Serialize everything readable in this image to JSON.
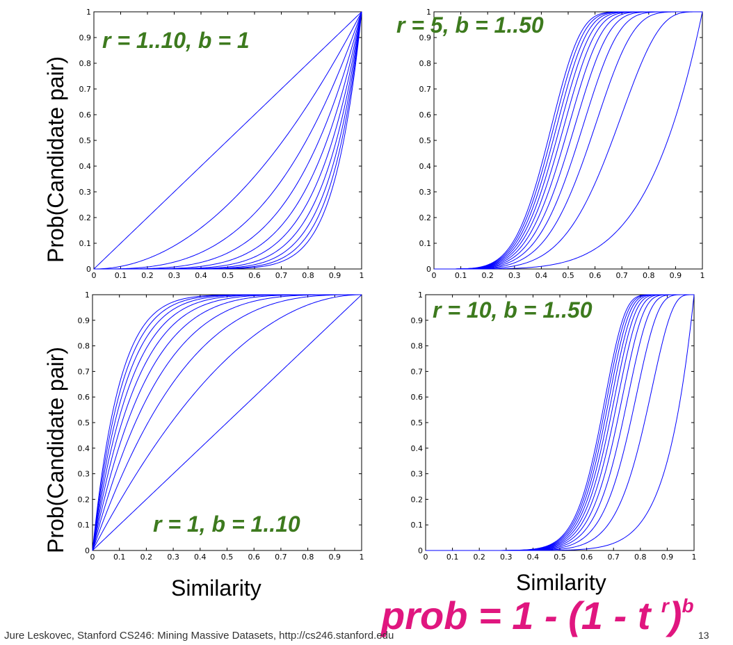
{
  "slide": {
    "footer": "Jure Leskovec, Stanford CS246: Mining Massive Datasets, http://cs246.stanford.edu",
    "page_number": "13",
    "formula_main": "prob = 1 - (1 - t ",
    "formula_r": "r",
    "formula_close": ")",
    "formula_b": "b",
    "accent_color": "#e0167f",
    "annotation_color": "#3d7a1e",
    "curve_color": "#0000ff"
  },
  "labels": {
    "ylabel_top": "Prob(Candidate pair)",
    "ylabel_bottom": "Prob(Candidate pair)",
    "xlabel_left": "Similarity",
    "xlabel_right": "Similarity"
  },
  "chart_data": [
    {
      "type": "line",
      "annotation": "r = 1..10, b = 1",
      "xlabel": "",
      "ylabel": "",
      "xlim": [
        0,
        1
      ],
      "ylim": [
        0,
        1
      ],
      "xticks": [
        "0",
        "0.1",
        "0.2",
        "0.3",
        "0.4",
        "0.5",
        "0.6",
        "0.7",
        "0.8",
        "0.9",
        "1"
      ],
      "yticks": [
        "0",
        "0.1",
        "0.2",
        "0.3",
        "0.4",
        "0.5",
        "0.6",
        "0.7",
        "0.8",
        "0.9",
        "1"
      ],
      "formula": "1 - (1 - t^r)^b",
      "r_values": [
        1,
        2,
        3,
        4,
        5,
        6,
        7,
        8,
        9,
        10
      ],
      "b_values": [
        1
      ],
      "x": [
        0,
        0.1,
        0.2,
        0.3,
        0.4,
        0.5,
        0.6,
        0.7,
        0.8,
        0.9,
        1
      ],
      "series": [
        {
          "values": [
            0,
            0.1,
            0.2,
            0.3,
            0.4,
            0.5,
            0.6,
            0.7,
            0.8,
            0.9,
            1
          ]
        },
        {
          "values": [
            0,
            0.01,
            0.04,
            0.09,
            0.16,
            0.25,
            0.36,
            0.49,
            0.64,
            0.81,
            1
          ]
        },
        {
          "values": [
            0,
            0.001,
            0.008,
            0.027,
            0.064,
            0.125,
            0.216,
            0.343,
            0.512,
            0.729,
            1
          ]
        },
        {
          "values": [
            0,
            0.0001,
            0.0016,
            0.0081,
            0.0256,
            0.0625,
            0.1296,
            0.2401,
            0.4096,
            0.6561,
            1
          ]
        },
        {
          "values": [
            0,
            0,
            0.0003,
            0.0024,
            0.0102,
            0.0313,
            0.0778,
            0.1681,
            0.3277,
            0.5905,
            1
          ]
        },
        {
          "values": [
            0,
            0,
            0.0001,
            0.0007,
            0.0041,
            0.0156,
            0.0467,
            0.1176,
            0.2621,
            0.5314,
            1
          ]
        },
        {
          "values": [
            0,
            0,
            0,
            0.0002,
            0.0016,
            0.0078,
            0.028,
            0.0824,
            0.2097,
            0.4783,
            1
          ]
        },
        {
          "values": [
            0,
            0,
            0,
            0.0001,
            0.0007,
            0.0039,
            0.0168,
            0.0576,
            0.1678,
            0.4305,
            1
          ]
        },
        {
          "values": [
            0,
            0,
            0,
            0,
            0.0003,
            0.002,
            0.0101,
            0.0404,
            0.1342,
            0.3874,
            1
          ]
        },
        {
          "values": [
            0,
            0,
            0,
            0,
            0.0001,
            0.001,
            0.006,
            0.0282,
            0.1074,
            0.3487,
            1
          ]
        }
      ]
    },
    {
      "type": "line",
      "annotation": "r = 5, b = 1..50",
      "xlabel": "",
      "ylabel": "",
      "xlim": [
        0,
        1
      ],
      "ylim": [
        0,
        1
      ],
      "xticks": [
        "0",
        "0.1",
        "0.2",
        "0.3",
        "0.4",
        "0.5",
        "0.6",
        "0.7",
        "0.8",
        "0.9",
        "1"
      ],
      "yticks": [
        "0",
        "0.1",
        "0.2",
        "0.3",
        "0.4",
        "0.5",
        "0.6",
        "0.7",
        "0.8",
        "0.9",
        "1"
      ],
      "formula": "1 - (1 - t^r)^b",
      "r_values": [
        5
      ],
      "b_values": [
        1,
        5,
        10,
        15,
        20,
        25,
        30,
        35,
        40,
        45,
        50
      ],
      "x": [
        0,
        0.1,
        0.2,
        0.3,
        0.4,
        0.5,
        0.6,
        0.7,
        0.8,
        0.9,
        1
      ],
      "series": [
        {
          "values": [
            0,
            0,
            0.0003,
            0.0024,
            0.0102,
            0.0313,
            0.0778,
            0.1681,
            0.3277,
            0.5905,
            1
          ]
        },
        {
          "values": [
            0,
            0,
            0.0016,
            0.0121,
            0.0501,
            0.1469,
            0.3333,
            0.5991,
            0.8627,
            0.9884,
            1
          ]
        },
        {
          "values": [
            0,
            0.0001,
            0.0032,
            0.024,
            0.0977,
            0.2723,
            0.5555,
            0.8393,
            0.9812,
            0.9999,
            1
          ]
        },
        {
          "values": [
            0,
            0.0002,
            0.0048,
            0.0358,
            0.143,
            0.3793,
            0.7036,
            0.9357,
            0.9974,
            1,
            1
          ]
        },
        {
          "values": [
            0,
            0.0002,
            0.0064,
            0.0475,
            0.186,
            0.4701,
            0.8024,
            0.9742,
            0.9996,
            1,
            1
          ]
        },
        {
          "values": [
            0,
            0.0002,
            0.008,
            0.059,
            0.227,
            0.5469,
            0.8683,
            0.9897,
            1,
            1,
            1
          ]
        },
        {
          "values": [
            0,
            0.0003,
            0.0096,
            0.0702,
            0.266,
            0.6118,
            0.9122,
            0.9959,
            1,
            1,
            1
          ]
        },
        {
          "values": [
            0,
            0.0004,
            0.0111,
            0.0814,
            0.3027,
            0.6666,
            0.9415,
            0.9984,
            1,
            1,
            1
          ]
        },
        {
          "values": [
            0,
            0.0004,
            0.0127,
            0.0924,
            0.3377,
            0.7128,
            0.961,
            0.9993,
            1,
            1,
            1
          ]
        },
        {
          "values": [
            0,
            0.0005,
            0.0143,
            0.1032,
            0.371,
            0.7518,
            0.974,
            0.9997,
            1,
            1,
            1
          ]
        },
        {
          "values": [
            0,
            0.0005,
            0.0159,
            0.1138,
            0.4025,
            0.7847,
            0.9827,
            0.9999,
            1,
            1,
            1
          ]
        }
      ]
    },
    {
      "type": "line",
      "annotation": "r = 1, b = 1..10",
      "xlabel": "",
      "ylabel": "",
      "xlim": [
        0,
        1
      ],
      "ylim": [
        0,
        1
      ],
      "xticks": [
        "0",
        "0.1",
        "0.2",
        "0.3",
        "0.4",
        "0.5",
        "0.6",
        "0.7",
        "0.8",
        "0.9",
        "1"
      ],
      "yticks": [
        "0",
        "0.1",
        "0.2",
        "0.3",
        "0.4",
        "0.5",
        "0.6",
        "0.7",
        "0.8",
        "0.9",
        "1"
      ],
      "formula": "1 - (1 - t^r)^b",
      "r_values": [
        1
      ],
      "b_values": [
        1,
        2,
        3,
        4,
        5,
        6,
        7,
        8,
        9,
        10
      ],
      "x": [
        0,
        0.1,
        0.2,
        0.3,
        0.4,
        0.5,
        0.6,
        0.7,
        0.8,
        0.9,
        1
      ],
      "series": [
        {
          "values": [
            0,
            0.1,
            0.2,
            0.3,
            0.4,
            0.5,
            0.6,
            0.7,
            0.8,
            0.9,
            1
          ]
        },
        {
          "values": [
            0,
            0.19,
            0.36,
            0.51,
            0.64,
            0.75,
            0.84,
            0.91,
            0.96,
            0.99,
            1
          ]
        },
        {
          "values": [
            0,
            0.271,
            0.488,
            0.657,
            0.784,
            0.875,
            0.936,
            0.973,
            0.992,
            0.999,
            1
          ]
        },
        {
          "values": [
            0,
            0.3439,
            0.5904,
            0.7599,
            0.8704,
            0.9375,
            0.9744,
            0.9919,
            0.9984,
            0.9999,
            1
          ]
        },
        {
          "values": [
            0,
            0.4095,
            0.6723,
            0.8319,
            0.9222,
            0.9688,
            0.9898,
            0.9976,
            0.9997,
            1,
            1
          ]
        },
        {
          "values": [
            0,
            0.4686,
            0.7379,
            0.8824,
            0.9533,
            0.9844,
            0.9959,
            0.9993,
            0.9999,
            1,
            1
          ]
        },
        {
          "values": [
            0,
            0.5217,
            0.7903,
            0.9176,
            0.972,
            0.9922,
            0.9984,
            0.9998,
            1,
            1,
            1
          ]
        },
        {
          "values": [
            0,
            0.5695,
            0.8322,
            0.9424,
            0.9832,
            0.9961,
            0.9993,
            0.9999,
            1,
            1,
            1
          ]
        },
        {
          "values": [
            0,
            0.6126,
            0.8658,
            0.9596,
            0.9899,
            0.998,
            0.9997,
            1,
            1,
            1,
            1
          ]
        },
        {
          "values": [
            0,
            0.6513,
            0.8926,
            0.9718,
            0.994,
            0.999,
            0.9999,
            1,
            1,
            1,
            1
          ]
        }
      ]
    },
    {
      "type": "line",
      "annotation": "r = 10, b = 1..50",
      "xlabel": "",
      "ylabel": "",
      "xlim": [
        0,
        1
      ],
      "ylim": [
        0,
        1
      ],
      "xticks": [
        "0",
        "0.1",
        "0.2",
        "0.3",
        "0.4",
        "0.5",
        "0.6",
        "0.7",
        "0.8",
        "0.9",
        "1"
      ],
      "yticks": [
        "0",
        "0.1",
        "0.2",
        "0.3",
        "0.4",
        "0.5",
        "0.6",
        "0.7",
        "0.8",
        "0.9",
        "1"
      ],
      "formula": "1 - (1 - t^r)^b",
      "r_values": [
        10
      ],
      "b_values": [
        1,
        5,
        10,
        15,
        20,
        25,
        30,
        35,
        40,
        45,
        50
      ],
      "x": [
        0,
        0.1,
        0.2,
        0.3,
        0.4,
        0.5,
        0.6,
        0.7,
        0.8,
        0.9,
        1
      ],
      "series": [
        {
          "values": [
            0,
            0,
            0,
            0,
            0.0001,
            0.001,
            0.006,
            0.0282,
            0.1074,
            0.3487,
            1
          ]
        },
        {
          "values": [
            0,
            0,
            0,
            0,
            0.0005,
            0.0049,
            0.0298,
            0.1337,
            0.4335,
            0.8822,
            1
          ]
        },
        {
          "values": [
            0,
            0,
            0,
            0,
            0.001,
            0.0097,
            0.0587,
            0.2496,
            0.6791,
            0.9861,
            1
          ]
        },
        {
          "values": [
            0,
            0,
            0,
            0,
            0.0016,
            0.0145,
            0.0868,
            0.35,
            0.8181,
            0.9984,
            1
          ]
        },
        {
          "values": [
            0,
            0,
            0,
            0,
            0.0021,
            0.0193,
            0.1141,
            0.4369,
            0.8969,
            0.9998,
            1
          ]
        },
        {
          "values": [
            0,
            0,
            0,
            0,
            0.0026,
            0.024,
            0.1405,
            0.5123,
            0.9416,
            1,
            1
          ]
        },
        {
          "values": [
            0,
            0,
            0,
            0,
            0.0031,
            0.0289,
            0.1662,
            0.5776,
            0.9669,
            1,
            1
          ]
        },
        {
          "values": [
            0,
            0,
            0,
            0,
            0.0037,
            0.0336,
            0.1911,
            0.6341,
            0.9812,
            1,
            1
          ]
        },
        {
          "values": [
            0,
            0,
            0,
            0,
            0.0042,
            0.0383,
            0.2153,
            0.6831,
            0.9894,
            1,
            1
          ]
        },
        {
          "values": [
            0,
            0,
            0,
            0,
            0.0047,
            0.0429,
            0.2388,
            0.7256,
            0.994,
            1,
            1
          ]
        },
        {
          "values": [
            0,
            0,
            0,
            0,
            0.0052,
            0.0476,
            0.2616,
            0.7624,
            0.9966,
            1,
            1
          ]
        }
      ]
    }
  ]
}
